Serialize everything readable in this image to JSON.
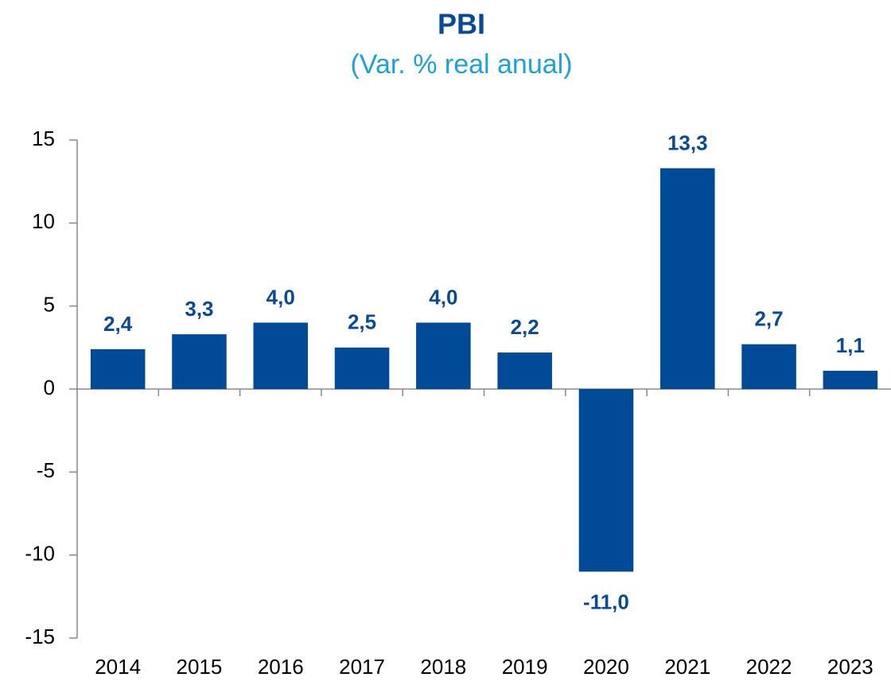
{
  "chart_data": {
    "type": "bar",
    "title": "PBI",
    "subtitle": "(Var. % real anual)",
    "categories": [
      "2014",
      "2015",
      "2016",
      "2017",
      "2018",
      "2019",
      "2020",
      "2021",
      "2022",
      "2023"
    ],
    "values": [
      2.4,
      3.3,
      4.0,
      2.5,
      4.0,
      2.2,
      -11.0,
      13.3,
      2.7,
      1.1
    ],
    "value_labels": [
      "2,4",
      "3,3",
      "4,0",
      "2,5",
      "4,0",
      "2,2",
      "-11,0",
      "13,3",
      "2,7",
      "1,1"
    ],
    "color": "#004a98",
    "ylim": [
      -15,
      15
    ],
    "yticks": [
      -15,
      -10,
      -5,
      0,
      5,
      10,
      15
    ],
    "grid": false
  }
}
